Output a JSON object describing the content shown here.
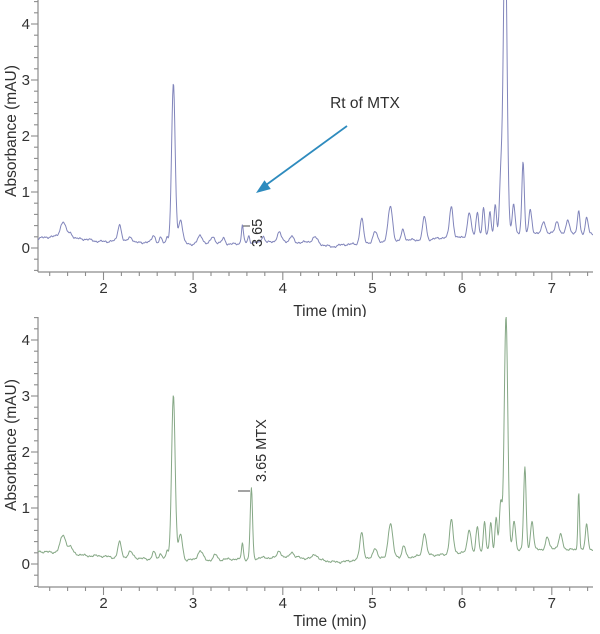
{
  "figure": {
    "background": "#ffffff"
  },
  "chart_data": [
    {
      "id": "upper-chromatogram",
      "type": "line",
      "xlabel": "Time (min)",
      "ylabel": "Absorbance (mAU)",
      "xlim": [
        1.27,
        7.46
      ],
      "ylim": [
        -0.43,
        4.43
      ],
      "x_ticks": [
        2,
        3,
        4,
        5,
        6,
        7
      ],
      "y_ticks": [
        0,
        1,
        2,
        3,
        4
      ],
      "minor_tick_step": 0.2,
      "grid": false,
      "legend": "none",
      "line_color": "#8185bb",
      "peaks_format": "[retention_time_min, peak_height_mAU, sigma_min]",
      "peaks": [
        [
          1.55,
          0.28,
          0.03
        ],
        [
          1.63,
          0.1,
          0.025
        ],
        [
          2.18,
          0.3,
          0.02
        ],
        [
          2.3,
          0.1,
          0.025
        ],
        [
          2.56,
          0.13,
          0.018
        ],
        [
          2.64,
          0.1,
          0.015
        ],
        [
          2.71,
          0.14,
          0.012
        ],
        [
          2.78,
          2.85,
          0.02
        ],
        [
          2.86,
          0.42,
          0.022
        ],
        [
          3.08,
          0.16,
          0.028
        ],
        [
          3.22,
          0.12,
          0.022
        ],
        [
          3.34,
          0.1,
          0.018
        ],
        [
          3.55,
          0.32,
          0.011
        ],
        [
          3.62,
          0.12,
          0.01
        ],
        [
          3.78,
          0.12,
          0.018
        ],
        [
          3.96,
          0.15,
          0.022
        ],
        [
          4.1,
          0.1,
          0.02
        ],
        [
          4.36,
          0.1,
          0.028
        ],
        [
          4.88,
          0.46,
          0.02
        ],
        [
          5.03,
          0.18,
          0.022
        ],
        [
          5.2,
          0.64,
          0.025
        ],
        [
          5.34,
          0.2,
          0.018
        ],
        [
          5.58,
          0.42,
          0.02
        ],
        [
          5.88,
          0.56,
          0.02
        ],
        [
          6.08,
          0.42,
          0.02
        ],
        [
          6.17,
          0.42,
          0.015
        ],
        [
          6.24,
          0.5,
          0.013
        ],
        [
          6.31,
          0.45,
          0.013
        ],
        [
          6.37,
          0.55,
          0.013
        ],
        [
          6.43,
          0.95,
          0.015
        ],
        [
          6.48,
          5.5,
          0.021
        ],
        [
          6.575,
          0.55,
          0.016
        ],
        [
          6.68,
          1.3,
          0.014
        ],
        [
          6.76,
          0.42,
          0.016
        ],
        [
          6.91,
          0.18,
          0.018
        ],
        [
          7.06,
          0.2,
          0.02
        ],
        [
          7.18,
          0.22,
          0.018
        ],
        [
          7.3,
          0.4,
          0.013
        ],
        [
          7.39,
          0.3,
          0.016
        ]
      ],
      "baseline_points": [
        [
          1.27,
          0.18
        ],
        [
          1.5,
          0.2
        ],
        [
          1.9,
          0.13
        ],
        [
          2.4,
          0.1
        ],
        [
          3.0,
          0.07
        ],
        [
          3.5,
          0.08
        ],
        [
          4.0,
          0.12
        ],
        [
          4.3,
          0.1
        ],
        [
          4.55,
          0.03
        ],
        [
          5.0,
          0.1
        ],
        [
          5.5,
          0.14
        ],
        [
          6.0,
          0.2
        ],
        [
          6.6,
          0.25
        ],
        [
          7.0,
          0.28
        ],
        [
          7.46,
          0.25
        ]
      ],
      "annotations": {
        "callout_text": "Rt of MTX",
        "peak_label": "3.65",
        "peak_label_rt": 3.65,
        "arrow_color": "#2e8bbe"
      }
    },
    {
      "id": "lower-chromatogram",
      "type": "line",
      "xlabel": "Time (min)",
      "ylabel": "Absorbance (mAU)",
      "xlim": [
        1.27,
        7.46
      ],
      "ylim": [
        -0.41,
        4.45
      ],
      "x_ticks": [
        2,
        3,
        4,
        5,
        6,
        7
      ],
      "y_ticks": [
        0,
        1,
        2,
        3,
        4
      ],
      "minor_tick_step": 0.2,
      "grid": false,
      "legend": "none",
      "line_color": "#86a886",
      "peaks_format": "[retention_time_min, peak_height_mAU, sigma_min]",
      "peaks": [
        [
          1.55,
          0.3,
          0.03
        ],
        [
          1.63,
          0.1,
          0.025
        ],
        [
          2.18,
          0.28,
          0.02
        ],
        [
          2.3,
          0.1,
          0.025
        ],
        [
          2.56,
          0.13,
          0.018
        ],
        [
          2.64,
          0.1,
          0.015
        ],
        [
          2.71,
          0.14,
          0.012
        ],
        [
          2.78,
          2.95,
          0.02
        ],
        [
          2.86,
          0.46,
          0.022
        ],
        [
          3.08,
          0.15,
          0.028
        ],
        [
          3.25,
          0.1,
          0.022
        ],
        [
          3.55,
          0.3,
          0.011
        ],
        [
          3.65,
          1.27,
          0.013
        ],
        [
          3.96,
          0.13,
          0.022
        ],
        [
          4.1,
          0.1,
          0.02
        ],
        [
          4.36,
          0.1,
          0.028
        ],
        [
          4.88,
          0.48,
          0.02
        ],
        [
          5.03,
          0.2,
          0.022
        ],
        [
          5.2,
          0.6,
          0.025
        ],
        [
          5.35,
          0.2,
          0.018
        ],
        [
          5.58,
          0.4,
          0.02
        ],
        [
          5.88,
          0.6,
          0.02
        ],
        [
          6.08,
          0.42,
          0.02
        ],
        [
          6.17,
          0.45,
          0.015
        ],
        [
          6.25,
          0.55,
          0.013
        ],
        [
          6.32,
          0.5,
          0.013
        ],
        [
          6.38,
          0.6,
          0.013
        ],
        [
          6.43,
          0.85,
          0.015
        ],
        [
          6.49,
          4.2,
          0.02
        ],
        [
          6.58,
          0.52,
          0.016
        ],
        [
          6.7,
          1.45,
          0.014
        ],
        [
          6.78,
          0.5,
          0.016
        ],
        [
          6.95,
          0.2,
          0.018
        ],
        [
          7.1,
          0.24,
          0.02
        ],
        [
          7.3,
          1.05,
          0.009
        ],
        [
          7.39,
          0.45,
          0.014
        ]
      ],
      "baseline_points": [
        [
          1.27,
          0.22
        ],
        [
          1.5,
          0.22
        ],
        [
          1.9,
          0.14
        ],
        [
          2.4,
          0.1
        ],
        [
          3.0,
          0.07
        ],
        [
          3.5,
          0.08
        ],
        [
          4.0,
          0.12
        ],
        [
          4.3,
          0.1
        ],
        [
          4.55,
          0.03
        ],
        [
          5.0,
          0.1
        ],
        [
          5.5,
          0.14
        ],
        [
          6.0,
          0.2
        ],
        [
          6.6,
          0.25
        ],
        [
          7.0,
          0.28
        ],
        [
          7.46,
          0.25
        ]
      ],
      "annotations": {
        "peak_label": "3.65 MTX",
        "peak_label_rt": 3.65
      }
    }
  ]
}
